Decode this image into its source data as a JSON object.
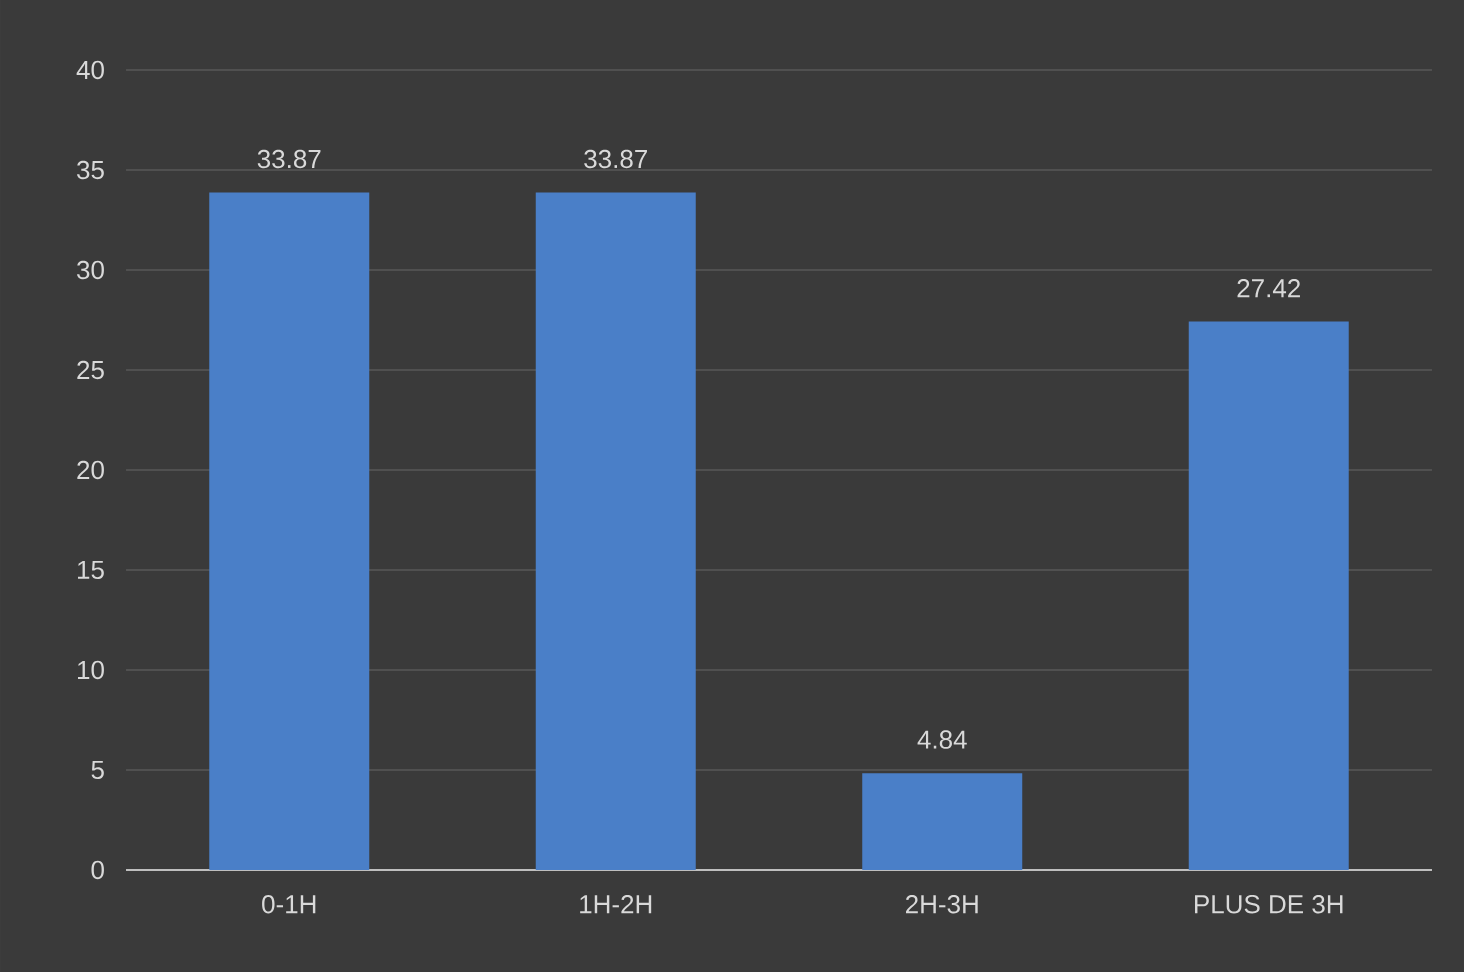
{
  "chart_data": {
    "type": "bar",
    "categories": [
      "0-1H",
      "1H-2H",
      "2H-3H",
      "PLUS DE 3H"
    ],
    "values": [
      33.87,
      33.87,
      4.84,
      27.42
    ],
    "color": "#4a7fc8",
    "ylim": [
      0,
      40
    ],
    "yticks": [
      0,
      5,
      10,
      15,
      20,
      25,
      30,
      35,
      40
    ],
    "grid": "y",
    "data_labels": true
  }
}
